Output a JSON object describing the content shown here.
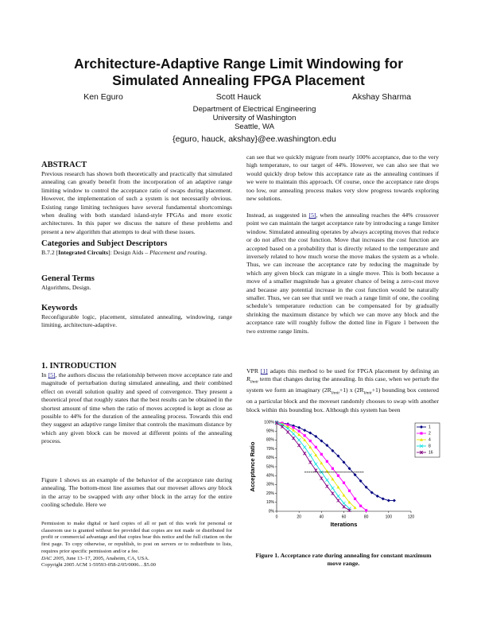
{
  "header": {
    "title": [
      "Architecture-Adaptive Range Limit Windowing for",
      "Simulated Annealing FPGA Placement"
    ],
    "authors": [
      "Ken Eguro",
      "Scott Hauck",
      "Akshay Sharma"
    ],
    "affiliation": [
      "Department of Electrical Engineering",
      "University of Washington",
      "Seattle, WA"
    ],
    "email": "{eguro, hauck, akshay}@ee.washington.edu"
  },
  "left_column": [
    {
      "heading": "ABSTRACT"
    },
    {
      "paragraph": [
        "Previous research has shown both theoretically and practically that simulated annealing can greatly benefit from the incorporation of an adaptive range limiting window to control the acceptance ratio of swaps during placement. However, the implementation of such a system is not necessarily obvious. Existing range limiting techniques have several fundamental shortcomings when dealing with both standard island-style FPGAs and more exotic architectures. In this paper we discuss the nature of these problems and present a new algorithm that attempts to deal with these issues."
      ]
    },
    {
      "heading": "Categories and Subject Descriptors"
    },
    {
      "paragraph": [
        "B.7.2 [",
        {
          "text": "Integrated Circuits",
          "style": "b"
        },
        "]: Design Aids – ",
        {
          "text": "Placement and routing",
          "style": "i"
        },
        "."
      ]
    },
    {
      "heading": "General Terms"
    },
    {
      "paragraph": [
        "Algorithms, Design."
      ]
    },
    {
      "heading": "Keywords"
    },
    {
      "paragraph": [
        "Reconfigurable logic, placement, simulated annealing, windowing, range limiting, architecture-adaptive."
      ]
    },
    {
      "heading": "1. INTRODUCTION"
    },
    {
      "paragraph": [
        "In ",
        {
          "text": "[5]",
          "style": "link"
        },
        ", the authors discuss the relationship between move acceptance rate and magnitude of perturbation during simulated annealing, and their combined effect on overall solution quality and speed of convergence. They present a theoretical proof that roughly states that the best results can be obtained in the shortest amount of time when the ratio of moves accepted is kept as close as possible to 44% for the duration of the annealing process. Towards this end they suggest an adaptive range limiter that controls the maximum distance by which any given block can be moved at different points of the annealing process."
      ]
    },
    {
      "paragraph": [
        "Figure 1 shows us an example of the behavior of the acceptance rate during annealing. The bottom-most line assumes that our moveset allows ",
        {
          "text": "any",
          "style": "i"
        },
        " block in the array to be swapped with ",
        {
          "text": "any",
          "style": "i"
        },
        " other block in the array for the entire cooling schedule. Here we"
      ]
    }
  ],
  "footnote": {
    "permission": "Permission to make digital or hard copies of all or part of this work for personal or classroom use is granted without fee provided that copies are not made or distributed for profit or commercial advantage and that copies bear this notice and the full citation on the first page. To copy otherwise, or republish, to post on servers or to redistribute to lists, requires prior specific permission and/or a fee.",
    "conference": [
      {
        "text": "DAC 2005",
        "style": "i"
      },
      ", June 13–17, 2005, Anaheim, CA, USA."
    ],
    "copyright": "Copyright 2005 ACM 1-59593-058-2/05/0006…$5.00"
  },
  "right_column": [
    {
      "paragraph": [
        "can see that we quickly migrate from nearly 100% acceptance, due to the very high temperature, to our target of 44%. However, we can also see that we would quickly drop below this acceptance rate as the annealing continues if we were to maintain this approach. Of course, once the acceptance rate drops too low, our annealing process makes very slow progress towards exploring new solutions."
      ]
    },
    {
      "paragraph": [
        "Instead, as suggested in ",
        {
          "text": "[5]",
          "style": "link"
        },
        ", when the annealing reaches the 44% crossover point we can maintain the target acceptance rate by introducing a range limiter window. Simulated annealing operates by always accepting moves that reduce or do not affect the cost function. Move that increases the cost function are accepted based on a probability that is directly related to the temperature and inversely related to how much worse the move makes the system as a whole. Thus, we can increase the acceptance rate by reducing the magnitude by which any given block can migrate in a single move. This is both because a move of a smaller magnitude has a greater chance of being a zero-cost move and because any potential increase in the cost function would be naturally smaller. Thus, we can see that until we reach a range limit of one, the cooling schedule’s temperature reduction can be compensated for by gradually shrinking the maximum distance by which we can move any block and the acceptance rate will roughly follow the dotted line in Figure 1 between the two extreme range limits."
      ]
    },
    {
      "paragraph": [
        "VPR ",
        {
          "text": "[1]",
          "style": "link"
        },
        " adapts this method to be used for FPGA placement by defining an ",
        {
          "text": "R",
          "style": "i"
        },
        {
          "text": "limit",
          "style": "sub"
        },
        " term that changes during the annealing. In this case, when we perturb the system we form an imaginary (2R",
        {
          "text": "limit",
          "style": "sub"
        },
        "+1) x (2R",
        {
          "text": "limit",
          "style": "sub"
        },
        "+1) bounding box centered on a particular block and the moveset randomly chooses to swap with another block within this bounding box. Although this system has been"
      ]
    }
  ],
  "chart_data": {
    "type": "line",
    "caption": "Figure 1. Acceptance rate during annealing for constant maximum move range.",
    "xlabel": "Iterations",
    "ylabel": "Acceptance Ratio",
    "x": [
      0,
      5,
      10,
      15,
      20,
      25,
      30,
      35,
      40,
      45,
      50,
      55,
      60,
      65,
      70,
      75,
      80,
      85,
      90,
      95,
      100,
      105
    ],
    "xlim": [
      0,
      120
    ],
    "xticks": [
      0,
      20,
      40,
      60,
      80,
      100,
      120
    ],
    "ylim": [
      0,
      100
    ],
    "yticks": [
      {
        "value": 0,
        "label": "0%"
      },
      {
        "value": 10,
        "label": "10%"
      },
      {
        "value": 20,
        "label": "20%"
      },
      {
        "value": 30,
        "label": "30%"
      },
      {
        "value": 40,
        "label": "40%"
      },
      {
        "value": 50,
        "label": "50%"
      },
      {
        "value": 60,
        "label": "60%"
      },
      {
        "value": 70,
        "label": "70%"
      },
      {
        "value": 80,
        "label": "80%"
      },
      {
        "value": 90,
        "label": "90%"
      },
      {
        "value": 100,
        "label": "100%"
      }
    ],
    "legend": "right",
    "series": [
      {
        "name": "1",
        "color": "#000080",
        "marker": "diamond",
        "values": [
          100,
          99,
          98,
          96,
          94,
          91,
          88,
          84,
          79,
          74,
          68,
          62,
          55,
          48,
          41,
          34,
          27,
          21,
          17,
          14,
          12,
          12
        ]
      },
      {
        "name": "2",
        "color": "#ff00ff",
        "marker": "square",
        "values": [
          100,
          99,
          97,
          94,
          90,
          85,
          79,
          72,
          64,
          56,
          48,
          40,
          32,
          23,
          14,
          6,
          1,
          null,
          null,
          null,
          null,
          null
        ]
      },
      {
        "name": "4",
        "color": "#e6e600",
        "marker": "triangle",
        "values": [
          100,
          98,
          95,
          91,
          86,
          80,
          72,
          63,
          54,
          45,
          36,
          27,
          18,
          10,
          4,
          null,
          null,
          null,
          null,
          null,
          null,
          null
        ]
      },
      {
        "name": "8",
        "color": "#00e0e0",
        "marker": "x",
        "values": [
          100,
          97,
          93,
          87,
          80,
          72,
          63,
          53,
          44,
          35,
          26,
          17,
          9,
          3,
          null,
          null,
          null,
          null,
          null,
          null,
          null,
          null
        ]
      },
      {
        "name": "16",
        "color": "#800080",
        "marker": "star",
        "values": [
          99,
          95,
          89,
          82,
          74,
          65,
          55,
          46,
          37,
          28,
          20,
          12,
          5,
          1,
          null,
          null,
          null,
          null,
          null,
          null,
          null,
          null
        ]
      }
    ],
    "reference_line": {
      "value": 44,
      "x": [
        25,
        78
      ]
    }
  }
}
